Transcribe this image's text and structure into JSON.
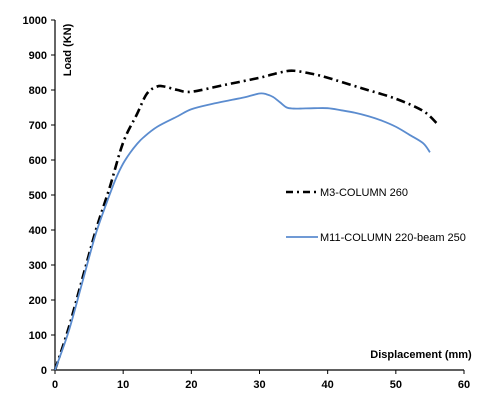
{
  "chart_data": {
    "type": "line",
    "title": "",
    "xlabel": "Displacement (mm)",
    "ylabel": "Load (KN)",
    "xlim": [
      0,
      60
    ],
    "ylim": [
      0,
      1000
    ],
    "xticks": [
      "0",
      "10",
      "20",
      "30",
      "40",
      "50",
      "60"
    ],
    "yticks": [
      "0",
      "100",
      "200",
      "300",
      "400",
      "500",
      "600",
      "700",
      "800",
      "900",
      "1000"
    ],
    "grid": false,
    "legend_position": "right",
    "series": [
      {
        "name": "M3-COLUMN 260",
        "color": "#000000",
        "style": "dash-dot",
        "x": [
          0,
          2,
          4,
          6,
          8,
          10,
          12,
          13.5,
          15,
          16,
          17,
          18,
          20,
          25,
          30,
          33,
          35,
          38,
          40,
          45,
          50,
          54,
          56
        ],
        "y": [
          0,
          120,
          260,
          400,
          520,
          650,
          730,
          790,
          810,
          810,
          805,
          800,
          795,
          815,
          835,
          850,
          855,
          845,
          835,
          805,
          775,
          740,
          705
        ]
      },
      {
        "name": "M11-COLUMN 220-beam 250",
        "color": "#5b8ccf",
        "style": "solid",
        "x": [
          0,
          2,
          4,
          6,
          8,
          9,
          10,
          11,
          12,
          13,
          15,
          18,
          20,
          23,
          26,
          28,
          30,
          31,
          32,
          33,
          34,
          35,
          36,
          38,
          40,
          42,
          44,
          46,
          48,
          50,
          52,
          54,
          55
        ],
        "y": [
          0,
          110,
          250,
          390,
          500,
          550,
          590,
          620,
          645,
          665,
          695,
          725,
          745,
          760,
          772,
          780,
          790,
          788,
          780,
          765,
          750,
          747,
          747,
          748,
          748,
          742,
          735,
          725,
          712,
          695,
          672,
          648,
          622
        ]
      }
    ]
  }
}
